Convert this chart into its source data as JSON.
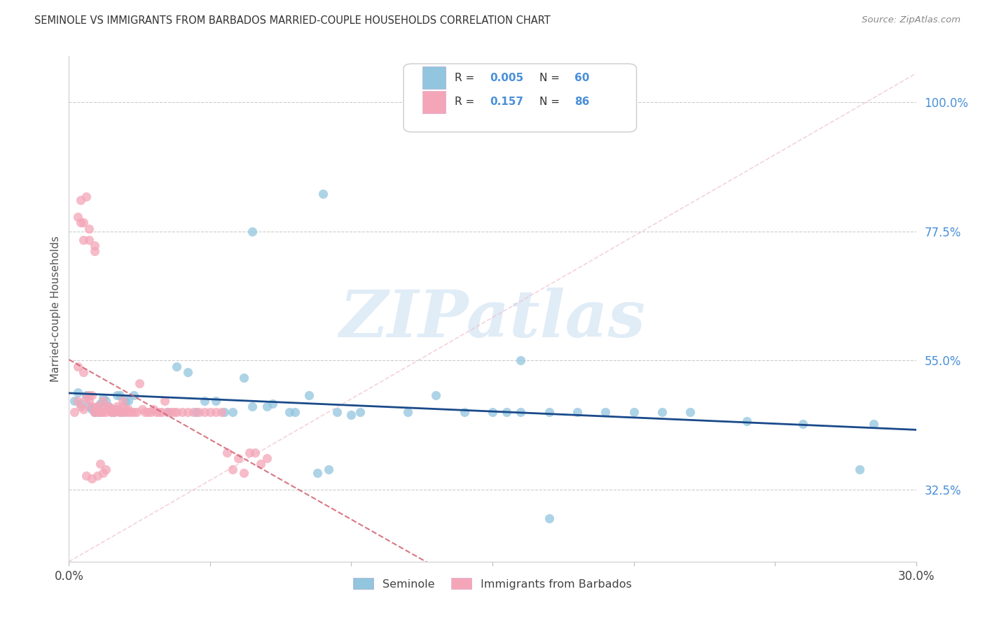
{
  "title": "SEMINOLE VS IMMIGRANTS FROM BARBADOS MARRIED-COUPLE HOUSEHOLDS CORRELATION CHART",
  "source": "Source: ZipAtlas.com",
  "ylabel": "Married-couple Households",
  "xlim": [
    0.0,
    0.3
  ],
  "ylim": [
    0.2,
    1.08
  ],
  "yticks": [
    0.325,
    0.55,
    0.775,
    1.0
  ],
  "ytick_labels": [
    "32.5%",
    "55.0%",
    "77.5%",
    "100.0%"
  ],
  "color_blue": "#92c5de",
  "color_pink": "#f4a6b8",
  "color_line_blue": "#1a4a8a",
  "color_line_pink": "#d06070",
  "color_diag": "#f0b8c8",
  "watermark_text": "ZIPatlas",
  "background": "#ffffff",
  "seminole_x": [
    0.002,
    0.004,
    0.006,
    0.008,
    0.01,
    0.012,
    0.014,
    0.016,
    0.018,
    0.02,
    0.003,
    0.007,
    0.009,
    0.011,
    0.013,
    0.015,
    0.017,
    0.019,
    0.021,
    0.023,
    0.035,
    0.042,
    0.048,
    0.055,
    0.062,
    0.07,
    0.078,
    0.085,
    0.092,
    0.1,
    0.038,
    0.045,
    0.052,
    0.058,
    0.065,
    0.072,
    0.08,
    0.088,
    0.095,
    0.103,
    0.12,
    0.13,
    0.14,
    0.15,
    0.16,
    0.17,
    0.18,
    0.19,
    0.2,
    0.21,
    0.16,
    0.22,
    0.24,
    0.26,
    0.28,
    0.09,
    0.065,
    0.155,
    0.285,
    0.17
  ],
  "seminole_y": [
    0.48,
    0.475,
    0.49,
    0.465,
    0.46,
    0.485,
    0.47,
    0.46,
    0.49,
    0.48,
    0.495,
    0.47,
    0.46,
    0.475,
    0.48,
    0.465,
    0.49,
    0.46,
    0.48,
    0.49,
    0.46,
    0.53,
    0.48,
    0.46,
    0.52,
    0.47,
    0.46,
    0.49,
    0.36,
    0.455,
    0.54,
    0.46,
    0.48,
    0.46,
    0.47,
    0.475,
    0.46,
    0.355,
    0.46,
    0.46,
    0.46,
    0.49,
    0.46,
    0.46,
    0.46,
    0.46,
    0.46,
    0.46,
    0.46,
    0.46,
    0.55,
    0.46,
    0.445,
    0.44,
    0.36,
    0.84,
    0.775,
    0.46,
    0.44,
    0.275
  ],
  "barbados_x": [
    0.002,
    0.003,
    0.004,
    0.005,
    0.006,
    0.007,
    0.008,
    0.009,
    0.01,
    0.011,
    0.012,
    0.013,
    0.014,
    0.015,
    0.016,
    0.017,
    0.018,
    0.019,
    0.02,
    0.021,
    0.003,
    0.005,
    0.007,
    0.008,
    0.009,
    0.01,
    0.011,
    0.012,
    0.013,
    0.014,
    0.015,
    0.016,
    0.017,
    0.018,
    0.019,
    0.02,
    0.021,
    0.022,
    0.023,
    0.024,
    0.025,
    0.026,
    0.027,
    0.028,
    0.029,
    0.03,
    0.031,
    0.032,
    0.033,
    0.034,
    0.035,
    0.036,
    0.037,
    0.038,
    0.04,
    0.042,
    0.044,
    0.046,
    0.048,
    0.05,
    0.052,
    0.054,
    0.056,
    0.058,
    0.06,
    0.062,
    0.064,
    0.066,
    0.068,
    0.07,
    0.003,
    0.005,
    0.007,
    0.009,
    0.011,
    0.013,
    0.006,
    0.008,
    0.01,
    0.012,
    0.004,
    0.006,
    0.004,
    0.007,
    0.005,
    0.009
  ],
  "barbados_y": [
    0.46,
    0.48,
    0.47,
    0.465,
    0.485,
    0.49,
    0.47,
    0.46,
    0.47,
    0.46,
    0.46,
    0.46,
    0.47,
    0.46,
    0.465,
    0.47,
    0.46,
    0.48,
    0.465,
    0.46,
    0.54,
    0.53,
    0.48,
    0.49,
    0.46,
    0.47,
    0.46,
    0.48,
    0.47,
    0.465,
    0.46,
    0.46,
    0.465,
    0.46,
    0.47,
    0.46,
    0.465,
    0.46,
    0.46,
    0.46,
    0.51,
    0.465,
    0.46,
    0.46,
    0.46,
    0.465,
    0.46,
    0.46,
    0.46,
    0.48,
    0.46,
    0.46,
    0.46,
    0.46,
    0.46,
    0.46,
    0.46,
    0.46,
    0.46,
    0.46,
    0.46,
    0.46,
    0.39,
    0.36,
    0.38,
    0.355,
    0.39,
    0.39,
    0.37,
    0.38,
    0.8,
    0.79,
    0.76,
    0.74,
    0.37,
    0.36,
    0.35,
    0.345,
    0.35,
    0.355,
    0.83,
    0.835,
    0.79,
    0.78,
    0.76,
    0.75
  ]
}
